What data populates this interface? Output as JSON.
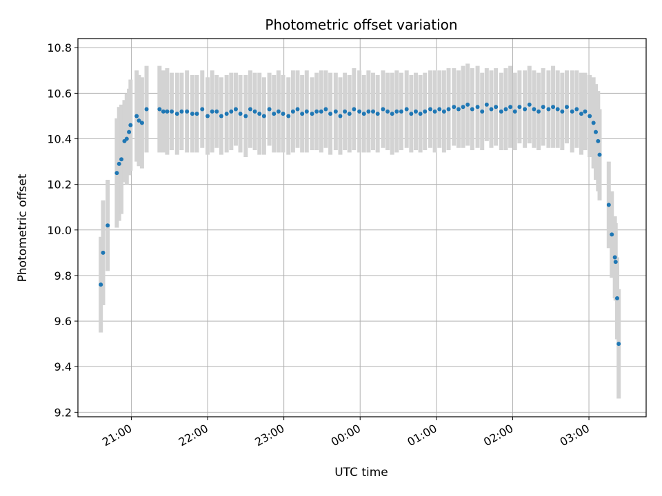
{
  "chart_data": {
    "type": "scatter",
    "title": "Photometric offset variation",
    "xlabel": "UTC time",
    "ylabel": "Photometric offset",
    "grid": true,
    "xlim_hours": [
      20.3,
      27.75
    ],
    "ylim": [
      9.18,
      10.84
    ],
    "x_ticks": [
      {
        "label": "21:00",
        "value": 21
      },
      {
        "label": "22:00",
        "value": 22
      },
      {
        "label": "23:00",
        "value": 23
      },
      {
        "label": "00:00",
        "value": 24
      },
      {
        "label": "01:00",
        "value": 25
      },
      {
        "label": "02:00",
        "value": 26
      },
      {
        "label": "03:00",
        "value": 27
      }
    ],
    "y_ticks": [
      {
        "label": "9.2",
        "value": 9.2
      },
      {
        "label": "9.4",
        "value": 9.4
      },
      {
        "label": "9.6",
        "value": 9.6
      },
      {
        "label": "9.8",
        "value": 9.8
      },
      {
        "label": "10.0",
        "value": 10.0
      },
      {
        "label": "10.2",
        "value": 10.2
      },
      {
        "label": "10.4",
        "value": 10.4
      },
      {
        "label": "10.6",
        "value": 10.6
      },
      {
        "label": "10.8",
        "value": 10.8
      }
    ],
    "point_color": "#1f77b4",
    "errorbar_color": "#d3d3d3",
    "series": [
      {
        "x_hours": [
          20.6,
          20.63,
          20.69,
          20.81,
          20.84,
          20.87,
          20.91,
          20.94,
          20.97,
          20.99,
          21.07,
          21.1,
          21.14,
          21.2,
          21.37,
          21.42,
          21.47,
          21.53,
          21.6,
          21.66,
          21.73,
          21.8,
          21.86,
          21.93,
          22.0,
          22.06,
          22.12,
          22.18,
          22.25,
          22.31,
          22.37,
          22.43,
          22.5,
          22.56,
          22.62,
          22.68,
          22.74,
          22.81,
          22.87,
          22.93,
          22.99,
          23.06,
          23.12,
          23.18,
          23.24,
          23.3,
          23.37,
          23.43,
          23.49,
          23.55,
          23.61,
          23.68,
          23.74,
          23.8,
          23.86,
          23.92,
          23.99,
          24.05,
          24.11,
          24.17,
          24.23,
          24.3,
          24.36,
          24.42,
          24.48,
          24.54,
          24.61,
          24.67,
          24.73,
          24.79,
          24.85,
          24.92,
          24.98,
          25.04,
          25.1,
          25.16,
          25.23,
          25.29,
          25.35,
          25.41,
          25.47,
          25.54,
          25.6,
          25.66,
          25.72,
          25.78,
          25.85,
          25.91,
          25.97,
          26.03,
          26.09,
          26.16,
          26.22,
          26.28,
          26.34,
          26.4,
          26.47,
          26.53,
          26.59,
          26.65,
          26.71,
          26.78,
          26.84,
          26.9,
          26.95,
          27.01,
          27.06,
          27.09,
          27.12,
          27.14,
          27.26,
          27.3,
          27.34,
          27.35,
          27.37,
          27.39
        ],
        "values": [
          9.76,
          9.9,
          10.02,
          10.25,
          10.29,
          10.31,
          10.39,
          10.4,
          10.43,
          10.46,
          10.5,
          10.48,
          10.47,
          10.53,
          10.53,
          10.52,
          10.52,
          10.52,
          10.51,
          10.52,
          10.52,
          10.51,
          10.51,
          10.53,
          10.5,
          10.52,
          10.52,
          10.5,
          10.51,
          10.52,
          10.53,
          10.51,
          10.5,
          10.53,
          10.52,
          10.51,
          10.5,
          10.53,
          10.51,
          10.52,
          10.51,
          10.5,
          10.52,
          10.53,
          10.51,
          10.52,
          10.51,
          10.52,
          10.52,
          10.53,
          10.51,
          10.52,
          10.5,
          10.52,
          10.51,
          10.53,
          10.52,
          10.51,
          10.52,
          10.52,
          10.51,
          10.53,
          10.52,
          10.51,
          10.52,
          10.52,
          10.53,
          10.51,
          10.52,
          10.51,
          10.52,
          10.53,
          10.52,
          10.53,
          10.52,
          10.53,
          10.54,
          10.53,
          10.54,
          10.55,
          10.53,
          10.54,
          10.52,
          10.55,
          10.53,
          10.54,
          10.52,
          10.53,
          10.54,
          10.52,
          10.54,
          10.53,
          10.55,
          10.53,
          10.52,
          10.54,
          10.53,
          10.54,
          10.53,
          10.52,
          10.54,
          10.52,
          10.53,
          10.51,
          10.52,
          10.5,
          10.47,
          10.43,
          10.39,
          10.33,
          10.11,
          9.98,
          9.88,
          9.86,
          9.7,
          9.5
        ],
        "errors": [
          0.21,
          0.23,
          0.2,
          0.24,
          0.25,
          0.24,
          0.18,
          0.2,
          0.19,
          0.2,
          0.2,
          0.2,
          0.2,
          0.19,
          0.19,
          0.18,
          0.19,
          0.17,
          0.18,
          0.17,
          0.18,
          0.17,
          0.17,
          0.17,
          0.17,
          0.18,
          0.16,
          0.17,
          0.17,
          0.17,
          0.16,
          0.17,
          0.18,
          0.17,
          0.17,
          0.18,
          0.17,
          0.16,
          0.17,
          0.18,
          0.17,
          0.17,
          0.18,
          0.17,
          0.17,
          0.18,
          0.16,
          0.17,
          0.18,
          0.17,
          0.18,
          0.17,
          0.17,
          0.17,
          0.17,
          0.18,
          0.18,
          0.17,
          0.18,
          0.17,
          0.17,
          0.17,
          0.17,
          0.18,
          0.18,
          0.17,
          0.17,
          0.17,
          0.17,
          0.17,
          0.17,
          0.17,
          0.18,
          0.17,
          0.18,
          0.18,
          0.17,
          0.17,
          0.18,
          0.18,
          0.18,
          0.18,
          0.17,
          0.16,
          0.17,
          0.17,
          0.17,
          0.18,
          0.18,
          0.17,
          0.16,
          0.17,
          0.17,
          0.17,
          0.17,
          0.17,
          0.17,
          0.18,
          0.17,
          0.17,
          0.16,
          0.18,
          0.17,
          0.18,
          0.17,
          0.18,
          0.2,
          0.21,
          0.22,
          0.2,
          0.19,
          0.19,
          0.18,
          0.17,
          0.18,
          0.24
        ]
      }
    ]
  }
}
